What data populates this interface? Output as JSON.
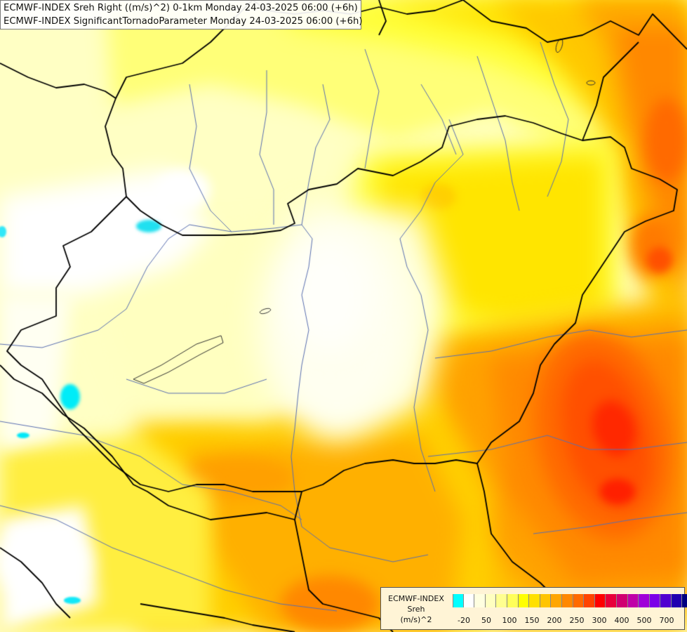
{
  "title": {
    "line1": "ECMWF-INDEX Sreh Right ((m/s)^2) 0-1km Monday 24-03-2025 06:00 (+6h)",
    "line2": "ECMWF-INDEX SignificantTornadoParameter Monday 24-03-2025 06:00 (+6h)"
  },
  "legend": {
    "title_lines": [
      "ECMWF-INDEX",
      "Sreh",
      "(m/s)^2"
    ],
    "colors": [
      "#00ffff",
      "#ffffff",
      "#ffffe0",
      "#ffffc0",
      "#ffff90",
      "#ffff5a",
      "#ffff00",
      "#ffe000",
      "#ffc400",
      "#ffa600",
      "#ff8800",
      "#ff6a00",
      "#ff4400",
      "#ff0000",
      "#e8003a",
      "#d00070",
      "#c000a8",
      "#a000d8",
      "#7c00e8",
      "#5000d0",
      "#2000b0",
      "#000080"
    ],
    "ticks": [
      "-20",
      "50",
      "100",
      "150",
      "200",
      "250",
      "300",
      "400",
      "500",
      "700"
    ]
  },
  "map": {
    "background": "#ffffc4",
    "border_color": "#000000",
    "river_color": "#5a6fb0"
  }
}
